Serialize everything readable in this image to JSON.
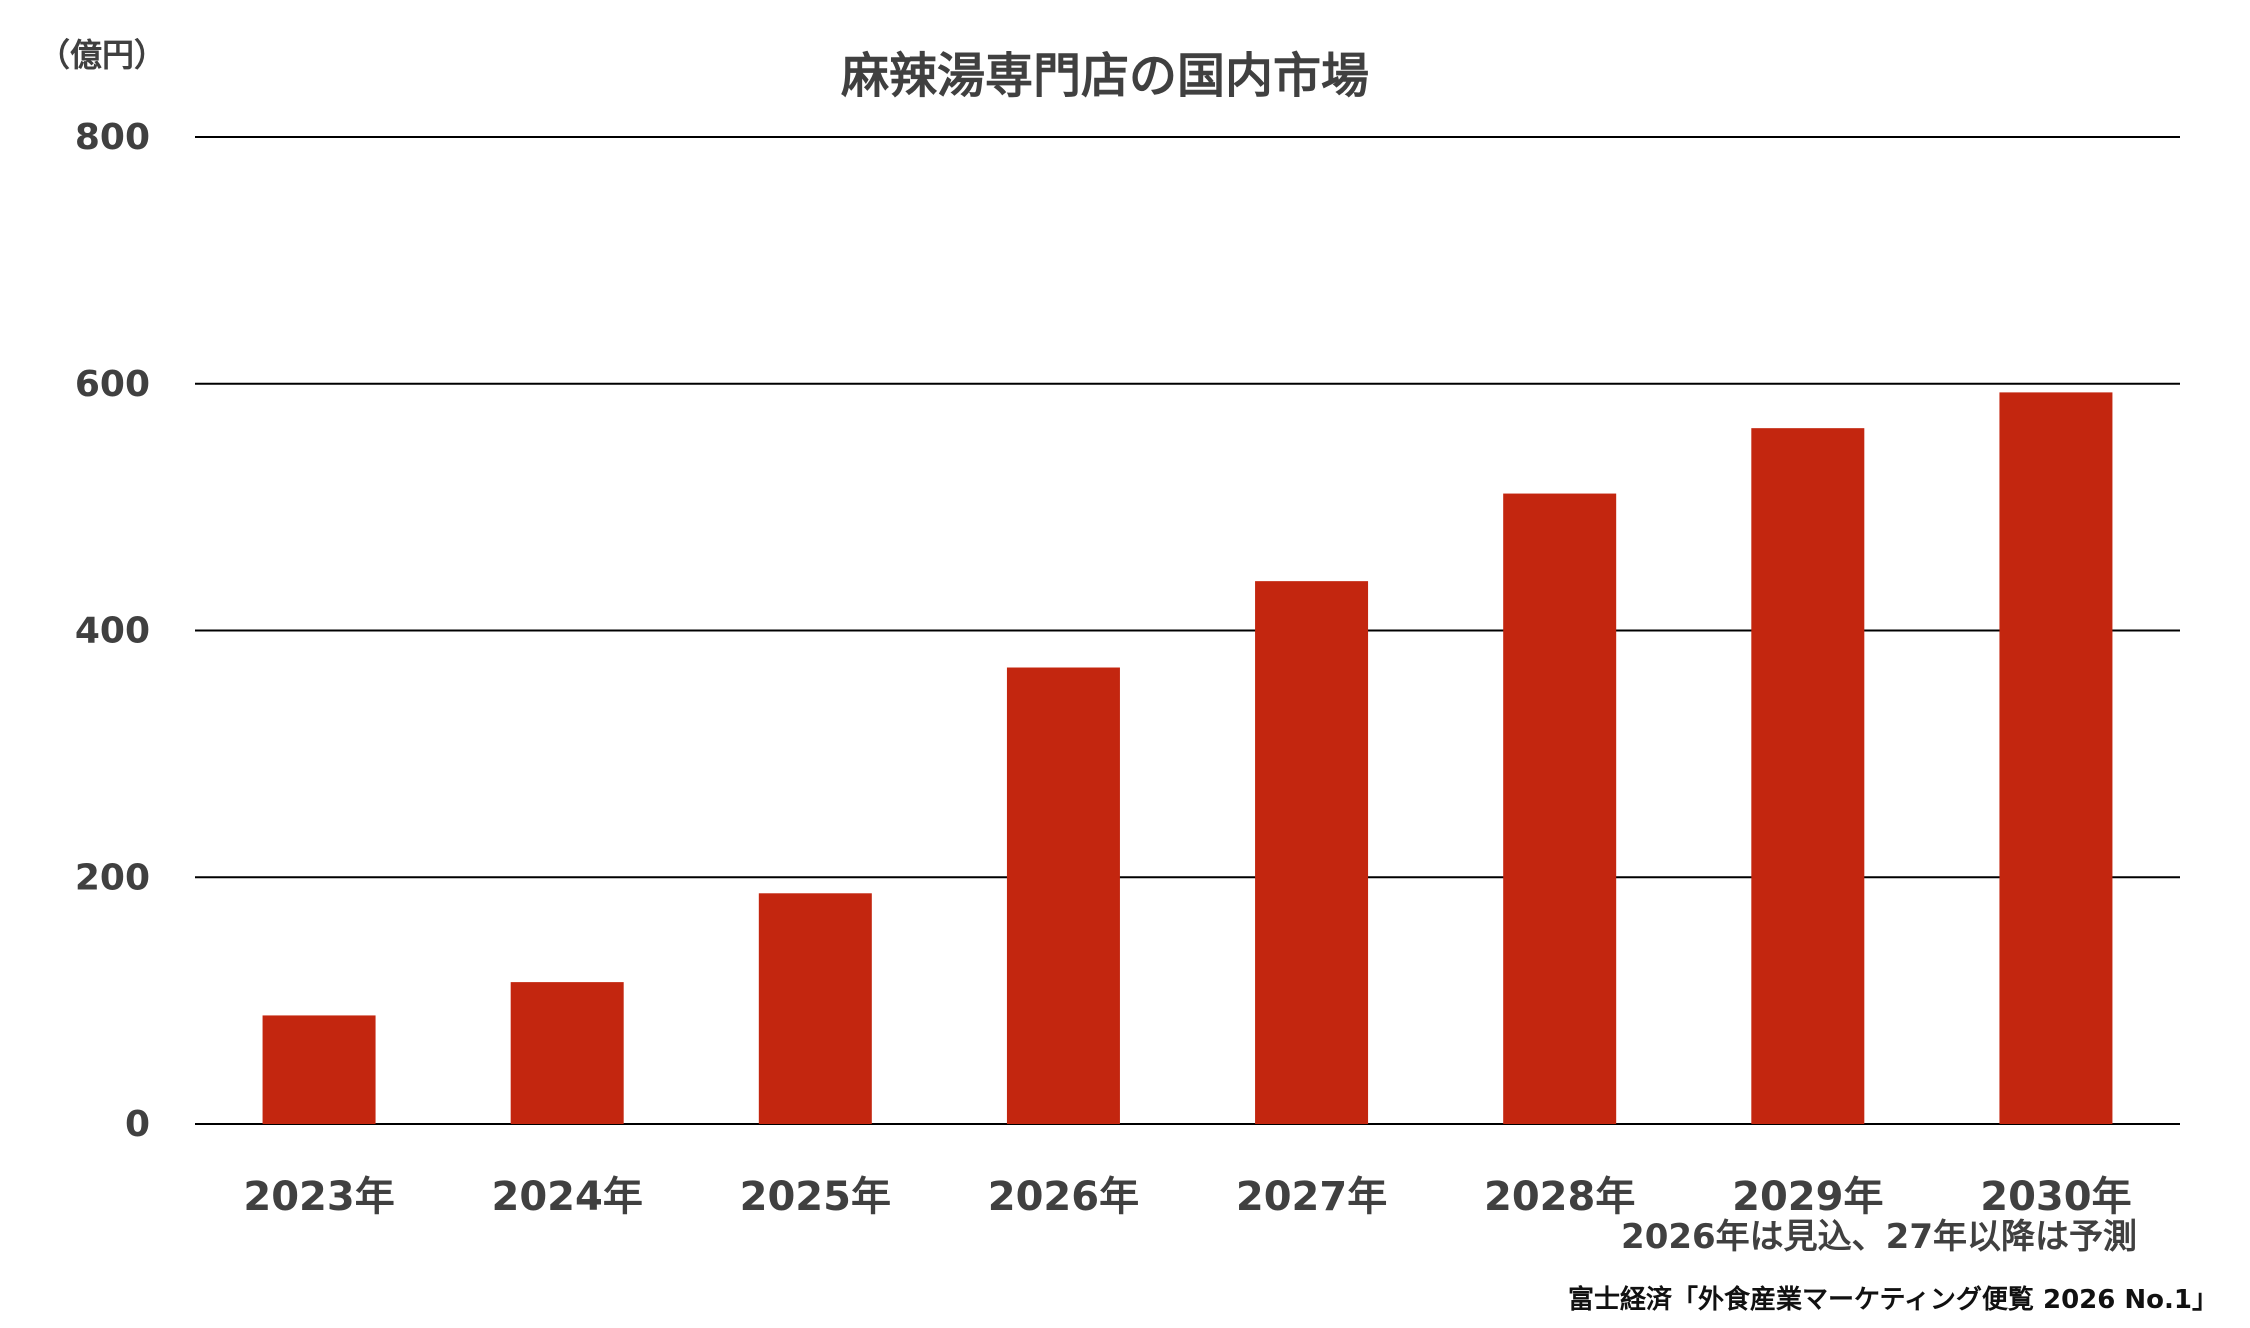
{
  "chart_data": {
    "type": "bar",
    "title": "麻辣湯専門店の国内市場",
    "unit_label": "（億円）",
    "categories": [
      "2023年",
      "2024年",
      "2025年",
      "2026年",
      "2027年",
      "2028年",
      "2029年",
      "2030年"
    ],
    "values": [
      88,
      115,
      187,
      370,
      440,
      511,
      564,
      593
    ],
    "ylim": [
      0,
      800
    ],
    "yticks": [
      0,
      200,
      400,
      600,
      800
    ],
    "grid": true,
    "bar_color": "#c3260f",
    "note": "2026年は見込、27年以降は予測",
    "source": "富士経済「外食産業マーケティング便覧 2026 No.1」"
  }
}
